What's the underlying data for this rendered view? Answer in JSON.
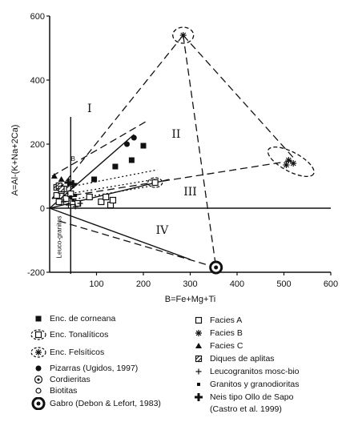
{
  "chart_data": {
    "type": "scatter",
    "title": "",
    "xlabel": "B=Fe+Mg+Ti",
    "ylabel": "A=Al-(K+Na+2Ca)",
    "xlim": [
      0,
      600
    ],
    "ylim": [
      -200,
      600
    ],
    "xticks": [
      "100",
      "200",
      "300",
      "400",
      "500",
      "600"
    ],
    "yticks": [
      "600",
      "400",
      "200",
      "0",
      "-200"
    ],
    "grid": false,
    "region_labels": [
      "I",
      "II",
      "III",
      "IV"
    ],
    "vertical_label": "Leuco-granitos",
    "small_letter": "B",
    "legend": [
      {
        "symbol": "filled-square",
        "label": "Enc. de corneana"
      },
      {
        "symbol": "dashed-ellipse",
        "label": "Enc. Tonalíticos"
      },
      {
        "symbol": "dashed-ellipse-star",
        "label": "Enc. Felsíticos"
      },
      {
        "symbol": "filled-circle",
        "label": "Pizarras (Ugidos, 1997)"
      },
      {
        "symbol": "circle-dot",
        "label": "Cordieritas"
      },
      {
        "symbol": "circle-small",
        "label": "Biotitas"
      },
      {
        "symbol": "open-circle-thick",
        "label": "Gabro (Debon & Lefort, 1983)"
      },
      {
        "symbol": "open-square",
        "label": "Facies A"
      },
      {
        "symbol": "asterisk",
        "label": "Facies B"
      },
      {
        "symbol": "triangle",
        "label": "Facies C"
      },
      {
        "symbol": "hatched-square",
        "label": "Diques de aplitas"
      },
      {
        "symbol": "plus",
        "label": "Leucogranitos mosc-bio"
      },
      {
        "symbol": "small-square",
        "label": "Granitos y granodioritas"
      },
      {
        "symbol": "bold-cross",
        "label": "Neis tipo Ollo de Sapo"
      },
      {
        "symbol": "none",
        "label": "(Castro et al. 1999)"
      }
    ],
    "lines": [
      {
        "style": "solid",
        "points": [
          [
            0,
            0
          ],
          [
            600,
            0
          ]
        ]
      },
      {
        "style": "solid",
        "points": [
          [
            0,
            0
          ],
          [
            180,
            230
          ]
        ]
      },
      {
        "style": "solid",
        "points": [
          [
            0,
            0
          ],
          [
            255,
            90
          ]
        ]
      },
      {
        "style": "solid",
        "points": [
          [
            0,
            0
          ],
          [
            300,
            -160
          ]
        ]
      },
      {
        "style": "solid",
        "points": [
          [
            45,
            285
          ],
          [
            45,
            -205
          ]
        ]
      },
      {
        "style": "solid",
        "points": [
          [
            45,
            0
          ],
          [
            45,
            -205
          ]
        ]
      },
      {
        "style": "dashed",
        "points": [
          [
            5,
            30
          ],
          [
            285,
            540
          ]
        ]
      },
      {
        "style": "dashed",
        "points": [
          [
            285,
            540
          ],
          [
            525,
            150
          ]
        ]
      },
      {
        "style": "dashed",
        "points": [
          [
            5,
            30
          ],
          [
            525,
            150
          ]
        ]
      },
      {
        "style": "dashed",
        "points": [
          [
            285,
            540
          ],
          [
            355,
            -185
          ]
        ]
      },
      {
        "style": "dashed",
        "points": [
          [
            20,
            -40
          ],
          [
            355,
            -185
          ]
        ]
      },
      {
        "style": "dashed",
        "points": [
          [
            5,
            100
          ],
          [
            205,
            270
          ]
        ]
      },
      {
        "style": "dotted",
        "points": [
          [
            20,
            60
          ],
          [
            230,
            120
          ]
        ]
      },
      {
        "style": "dotted",
        "points": [
          [
            20,
            40
          ],
          [
            225,
            90
          ]
        ]
      },
      {
        "style": "dotted",
        "points": [
          [
            20,
            20
          ],
          [
            220,
            70
          ]
        ]
      }
    ],
    "series": [
      {
        "symbol": "filled-square",
        "x": [
          200,
          175,
          140,
          95
        ],
        "y": [
          195,
          150,
          130,
          90
        ]
      },
      {
        "symbol": "filled-circle",
        "x": [
          180,
          165
        ],
        "y": [
          220,
          200
        ]
      },
      {
        "symbol": "open-square",
        "x": [
          15,
          25,
          20,
          35,
          30,
          45,
          50,
          60,
          85,
          110,
          120,
          130,
          135,
          225
        ],
        "y": [
          40,
          55,
          20,
          30,
          60,
          45,
          20,
          15,
          35,
          20,
          35,
          10,
          25,
          80
        ]
      },
      {
        "symbol": "asterisk",
        "x": [
          285,
          510,
          520,
          505
        ],
        "y": [
          540,
          150,
          140,
          135
        ]
      },
      {
        "symbol": "triangle",
        "x": [
          10,
          25
        ],
        "y": [
          100,
          90
        ]
      },
      {
        "symbol": "hatched-square",
        "x": [
          15,
          20,
          25
        ],
        "y": [
          65,
          70,
          60
        ]
      },
      {
        "symbol": "plus",
        "x": [
          30,
          40,
          55,
          65
        ],
        "y": [
          20,
          10,
          5,
          15
        ]
      },
      {
        "symbol": "small-square",
        "x": [
          45,
          50,
          55
        ],
        "y": [
          35,
          25,
          40
        ]
      },
      {
        "symbol": "bold-cross",
        "x": [
          40,
          50
        ],
        "y": [
          80,
          75
        ]
      },
      {
        "symbol": "open-circle-thick",
        "x": [
          355
        ],
        "y": [
          -185
        ]
      }
    ]
  }
}
